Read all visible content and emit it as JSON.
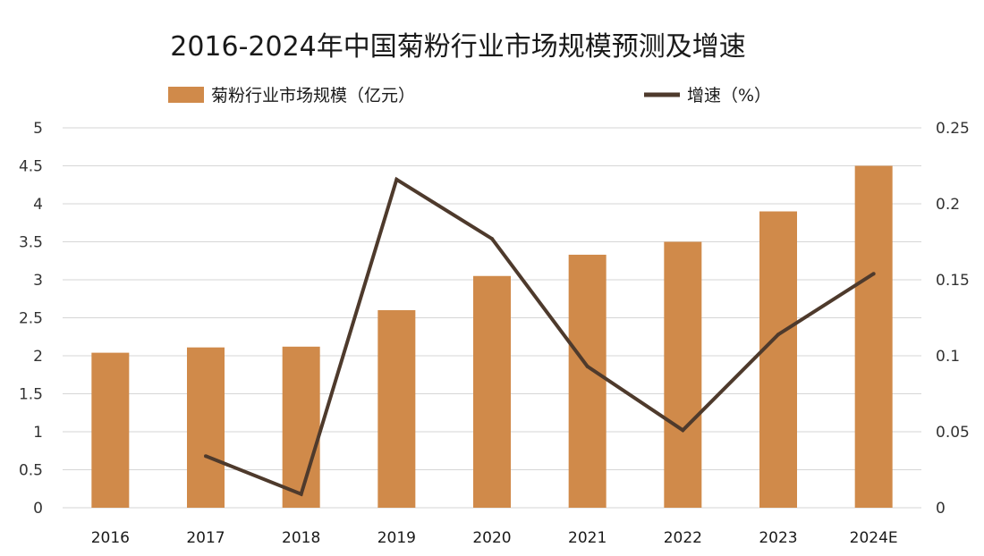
{
  "chart_data": {
    "type": "bar+line",
    "title": "2016-2024年中国菊粉行业市场规模预测及增速",
    "categories": [
      "2016",
      "2017",
      "2018",
      "2019",
      "2020",
      "2021",
      "2022",
      "2023",
      "2024E"
    ],
    "series": [
      {
        "name": "菊粉行业市场规模（亿元）",
        "type": "bar",
        "axis": "left",
        "color": "#d08a4a",
        "values": [
          2.04,
          2.11,
          2.12,
          2.6,
          3.05,
          3.33,
          3.5,
          3.9,
          4.5
        ]
      },
      {
        "name": "增速（%）",
        "type": "line",
        "axis": "right",
        "color": "#4e3a2c",
        "values": [
          null,
          0.034,
          0.009,
          0.216,
          0.177,
          0.093,
          0.051,
          0.114,
          0.154
        ]
      }
    ],
    "y_left": {
      "min": 0,
      "max": 5,
      "ticks": [
        "0",
        "0.5",
        "1",
        "1.5",
        "2",
        "2.5",
        "3",
        "3.5",
        "4",
        "4.5",
        "5"
      ]
    },
    "y_right": {
      "min": 0,
      "max": 0.25,
      "ticks": [
        "0",
        "0.05",
        "0.1",
        "0.15",
        "0.2",
        "0.25"
      ]
    },
    "grid": true,
    "legend_position": "top"
  }
}
